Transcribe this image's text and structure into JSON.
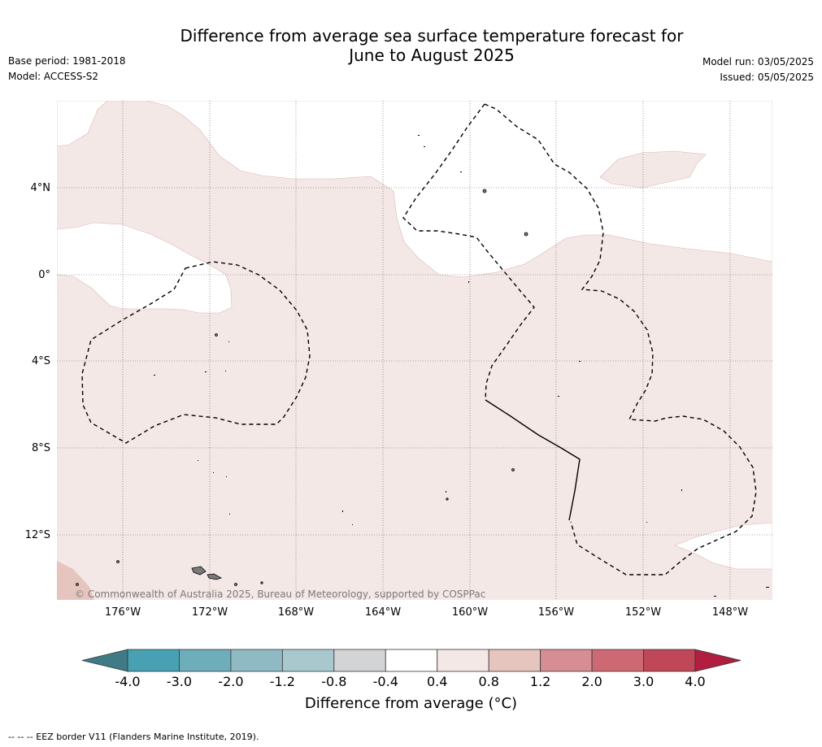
{
  "title_line1": "Difference from average sea surface temperature forecast for",
  "title_line2": "June to August 2025",
  "meta": {
    "base_period": "Base period: 1981-2018",
    "model": "Model: ACCESS-S2",
    "model_run": "Model run: 03/05/2025",
    "issued": "Issued: 05/05/2025"
  },
  "map": {
    "lat_labels": [
      "4°N",
      "0°",
      "4°S",
      "8°S",
      "12°S"
    ],
    "lon_labels": [
      "176°W",
      "172°W",
      "168°W",
      "164°W",
      "160°W",
      "156°W",
      "152°W",
      "148°W"
    ],
    "copyright": "© Commonwealth of Australia 2025, Bureau of Meteorology, supported by COSPPac",
    "colors": {
      "band_0.4_0.8": "#f4e8e6",
      "band_0.8_1.2": "#e7c5bf",
      "band_-0.4_0.4": "#ffffff",
      "eez_line": "#000000",
      "land": "#8a8a8a"
    }
  },
  "colorbar": {
    "ticks": [
      "-4.0",
      "-3.0",
      "-2.0",
      "-1.2",
      "-0.8",
      "-0.4",
      "0.4",
      "0.8",
      "1.2",
      "2.0",
      "3.0",
      "4.0"
    ],
    "colors": [
      "#3f7b86",
      "#47a1b2",
      "#6daeba",
      "#8fbac4",
      "#a9c8ce",
      "#d2d4d5",
      "#ffffff",
      "#f4e8e6",
      "#e7c5bf",
      "#d68d94",
      "#cd6973",
      "#bf4757",
      "#b11e3f"
    ],
    "label": "Difference from average (°C)"
  },
  "footer": "--  --  -- EEZ border V11 (Flanders Marine Institute, 2019)."
}
